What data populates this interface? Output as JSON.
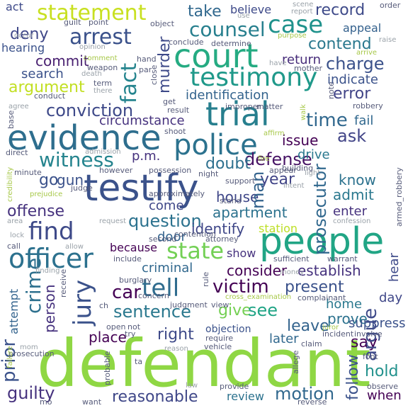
{
  "words": {
    "defendant": "defendant",
    "evidence": "evidence",
    "testify": "testify",
    "people": "people",
    "court": "court",
    "trial": "trial",
    "police": "police",
    "testimony": "testimony",
    "statement": "statement",
    "case": "case",
    "officer": "officer",
    "state": "state",
    "find": "find",
    "tell": "tell",
    "arrest": "arrest",
    "counsel": "counsel",
    "witness": "witness",
    "victim": "victim",
    "defense": "defense",
    "conviction": "conviction",
    "sentence": "sentence",
    "question": "question",
    "reasonable": "reasonable",
    "motion": "motion",
    "guilty": "guilty",
    "argument": "argument",
    "charge": "charge",
    "contend": "contend",
    "record": "record",
    "time": "time",
    "error": "error",
    "ask": "ask",
    "commit": "commit",
    "deny": "deny",
    "take": "take",
    "offense": "offense",
    "apartment": "apartment",
    "present": "present",
    "place": "place",
    "right": "right",
    "give": "give",
    "see": "see",
    "say": "say",
    "hold": "hold",
    "leave": "leave",
    "year": "year",
    "car": "car",
    "doubt": "doubt",
    "go": "go",
    "gun": "gun",
    "house": "house",
    "admit": "admit",
    "know": "know",
    "identify": "identify",
    "consider": "consider",
    "establish": "establish",
    "criminal": "criminal",
    "prove": "prove",
    "suppress": "suppress",
    "home": "home",
    "when": "when",
    "review": "review",
    "later": "later",
    "search": "search",
    "return": "return",
    "identification": "identification",
    "circumstance": "circumstance",
    "issue": "issue",
    "indicate": "indicate",
    "believe": "believe",
    "appeal": "appeal",
    "hearing": "hearing",
    "act": "act",
    "fail": "fail",
    "drive": "drive",
    "pm": "p.m.",
    "come": "come",
    "because": "because",
    "door": "door",
    "station": "station",
    "show": "show",
    "enter": "enter",
    "objection": "objection",
    "day": "day",
    "fact": "fact",
    "murder": "murder",
    "jury": "jury",
    "crime": "crime",
    "person": "person",
    "prior": "prior",
    "prosecutor": "prosecutor",
    "argue": "argue",
    "man": "man",
    "follow": "follow",
    "hear": "hear",
    "attempt": "attempt"
  },
  "small_words": {
    "guilt": "guilt",
    "point": "point",
    "object": "object",
    "use": "use",
    "scene": "scene",
    "report": "report",
    "order": "order",
    "conclude": "conclude",
    "determine": "determine",
    "purpose": "purpose",
    "raise": "raise",
    "occur": "occur",
    "opinion": "opinion",
    "arrive": "arrive",
    "comment": "comment",
    "hand": "hand",
    "weapon": "weapon",
    "par": "par",
    "death": "death",
    "mother": "mother",
    "have": "have",
    "term": "term",
    "close": "close",
    "note": "note",
    "conduct": "conduct",
    "there": "there",
    "agree": "agree",
    "get": "get",
    "improper": "improper",
    "matter": "matter",
    "result": "result",
    "robbery": "robbery",
    "base": "base",
    "shoot": "shoot",
    "affirm": "affirm",
    "direct": "direct",
    "admission": "admission",
    "credibility": "credibility",
    "fire": "fire",
    "building": "building",
    "minute": "minute",
    "however": "however",
    "possession": "possession",
    "night": "night",
    "appear": "appear",
    "light": "light",
    "judge": "judge",
    "prejudice": "prejudice",
    "support": "support",
    "intent": "intent",
    "approximately": "approximately",
    "stand": "stand",
    "armed_robbery": "armed_robbery",
    "area": "area",
    "request": "request",
    "contention": "contention",
    "confession": "confession",
    "lock": "lock",
    "second": "second",
    "attorney": "attorney",
    "call": "call",
    "allow": "allow",
    "include": "include",
    "sufficient": "sufficient",
    "warrant": "warrant",
    "finding": "finding",
    "burglary": "burglary",
    "money": "money",
    "rule": "rule",
    "concern": "concern",
    "judgment": "judgment",
    "view": "view",
    "cross_examination": "cross_examination",
    "complainant": "complainant",
    "receive": "receive",
    "open": "open",
    "not": "not",
    "try": "try",
    "require": "require",
    "claim": "claim",
    "juror": "juror",
    "incident": "incident",
    "involve": "involve",
    "prosecution": "prosecution",
    "vehicle": "vehicle",
    "foot": "foot",
    "failure": "failure",
    "probable": "probable",
    "provide": "provide",
    "allege": "allege",
    "observe": "observe",
    "want": "want",
    "law": "law",
    "reverse": "reverse",
    "reason": "reason",
    "ch": "ch",
    "mom": "mom",
    "walk": "walk",
    "mo": "mo",
    "ta": "ta"
  },
  "colors": {
    "background": "#ffffff",
    "palette": [
      "#440154",
      "#3b528b",
      "#21918c",
      "#5ec962",
      "#fde725"
    ]
  }
}
